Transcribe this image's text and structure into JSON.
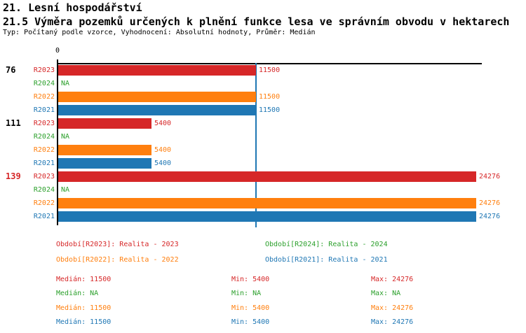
{
  "header": {
    "title": "21. Lesní hospodářství",
    "subtitle": "21.5 Výměra pozemků určených k plnění funkce lesa ve správním obvodu v hektarech",
    "meta": "Typ: Počítaný podle vzorce, Vyhodnocení: Absolutní hodnoty, Průměr: Medián"
  },
  "chart_data": {
    "type": "bar",
    "orientation": "horizontal",
    "title": "21.5 Výměra pozemků určených k plnění funkce lesa ve správním obvodu v hektarech",
    "x_axis": {
      "zero_label": "0",
      "min": 0,
      "grid": false
    },
    "median_line_value": 11500,
    "series_colors": {
      "R2023": "#d62728",
      "R2024": "#2ca02c",
      "R2022": "#ff7f0e",
      "R2021": "#1f77b4"
    },
    "groups": [
      {
        "label": "76",
        "label_color": "#000000",
        "bars": [
          {
            "series": "R2023",
            "value": 11500,
            "display": "11500"
          },
          {
            "series": "R2024",
            "value": null,
            "display": "NA"
          },
          {
            "series": "R2022",
            "value": 11500,
            "display": "11500"
          },
          {
            "series": "R2021",
            "value": 11500,
            "display": "11500"
          }
        ]
      },
      {
        "label": "111",
        "label_color": "#000000",
        "bars": [
          {
            "series": "R2023",
            "value": 5400,
            "display": "5400"
          },
          {
            "series": "R2024",
            "value": null,
            "display": "NA"
          },
          {
            "series": "R2022",
            "value": 5400,
            "display": "5400"
          },
          {
            "series": "R2021",
            "value": 5400,
            "display": "5400"
          }
        ]
      },
      {
        "label": "139",
        "label_color": "#d62728",
        "bars": [
          {
            "series": "R2023",
            "value": 24276,
            "display": "24276"
          },
          {
            "series": "R2024",
            "value": null,
            "display": "NA"
          },
          {
            "series": "R2022",
            "value": 24276,
            "display": "24276"
          },
          {
            "series": "R2021",
            "value": 24276,
            "display": "24276"
          }
        ]
      }
    ],
    "legend_position": "bottom"
  },
  "legend": {
    "items": [
      {
        "label": "Období[R2023]: Realita - 2023",
        "color": "#d62728"
      },
      {
        "label": "Období[R2024]: Realita - 2024",
        "color": "#2ca02c"
      },
      {
        "label": "Období[R2022]: Realita - 2022",
        "color": "#ff7f0e"
      },
      {
        "label": "Období[R2021]: Realita - 2021",
        "color": "#1f77b4"
      }
    ]
  },
  "stats": {
    "labels": {
      "median": "Medián",
      "min": "Min",
      "max": "Max"
    },
    "rows": [
      {
        "color": "#d62728",
        "median": "11500",
        "min": "5400",
        "max": "24276"
      },
      {
        "color": "#2ca02c",
        "median": "NA",
        "min": "NA",
        "max": "NA"
      },
      {
        "color": "#ff7f0e",
        "median": "11500",
        "min": "5400",
        "max": "24276"
      },
      {
        "color": "#1f77b4",
        "median": "11500",
        "min": "5400",
        "max": "24276"
      }
    ]
  }
}
